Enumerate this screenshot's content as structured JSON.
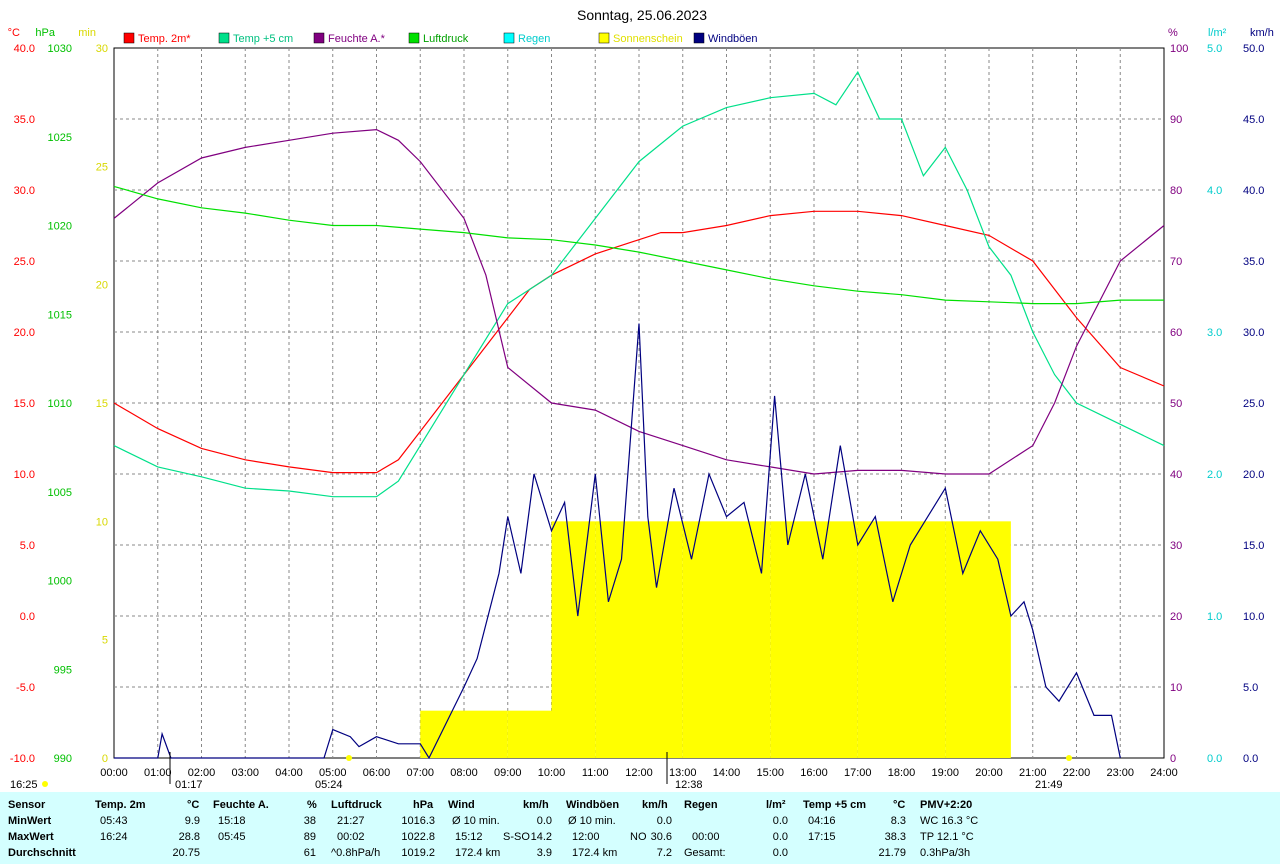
{
  "title": "Sonntag, 25.06.2023",
  "legend": [
    {
      "label": "Temp. 2m*",
      "color": "#ff0000"
    },
    {
      "label": "Temp +5 cm",
      "color": "#00e08a"
    },
    {
      "label": "Feuchte A.*",
      "color": "#800080"
    },
    {
      "label": "Luftdruck",
      "color": "#00e000"
    },
    {
      "label": "Regen",
      "color": "#00ffff"
    },
    {
      "label": "Sonnenschein",
      "color": "#ffff00"
    },
    {
      "label": "Windböen",
      "color": "#000080"
    }
  ],
  "axes": {
    "temp": {
      "unit": "°C",
      "ticks": [
        "40.0",
        "35.0",
        "30.0",
        "25.0",
        "20.0",
        "15.0",
        "10.0",
        "5.0",
        "0.0",
        "-5.0",
        "-10.0"
      ],
      "color": "#ff0000",
      "range": [
        -10,
        40
      ]
    },
    "pressure": {
      "unit": "hPa",
      "ticks": [
        "1030",
        "1025",
        "1020",
        "1015",
        "1010",
        "1005",
        "1000",
        "995",
        "990"
      ],
      "color": "#00c000",
      "range": [
        990,
        1030
      ]
    },
    "sun": {
      "unit": "min",
      "ticks": [
        "30",
        "25",
        "20",
        "15",
        "10",
        "5",
        "0"
      ],
      "color": "#ffff00",
      "range": [
        0,
        30
      ]
    },
    "humidity": {
      "unit": "%",
      "ticks": [
        "100",
        "90",
        "80",
        "70",
        "60",
        "50",
        "40",
        "30",
        "20",
        "10",
        "0"
      ],
      "color": "#800080",
      "range": [
        0,
        100
      ]
    },
    "rain": {
      "unit": "l/m²",
      "ticks": [
        "5.0",
        "4.0",
        "3.0",
        "2.0",
        "1.0",
        "0.0"
      ],
      "color": "#00ffff",
      "range": [
        0,
        5
      ]
    },
    "wind": {
      "unit": "km/h",
      "ticks": [
        "50.0",
        "45.0",
        "40.0",
        "35.0",
        "30.0",
        "25.0",
        "20.0",
        "15.0",
        "10.0",
        "5.0",
        "0.0"
      ],
      "color": "#000080",
      "range": [
        0,
        50
      ]
    },
    "x_ticks": [
      "00:00",
      "01:00",
      "02:00",
      "03:00",
      "04:00",
      "05:00",
      "06:00",
      "07:00",
      "08:00",
      "09:00",
      "10:00",
      "11:00",
      "12:00",
      "13:00",
      "14:00",
      "15:00",
      "16:00",
      "17:00",
      "18:00",
      "19:00",
      "20:00",
      "21:00",
      "22:00",
      "23:00",
      "24:00"
    ]
  },
  "markers": {
    "moon_set": "16:25",
    "moonrise": "01:17",
    "sunrise": "05:24",
    "noon": "12:38",
    "sunset": "21:49"
  },
  "chart_data": {
    "type": "line",
    "x_unit": "hour",
    "series": [
      {
        "name": "Temp. 2m*",
        "axis": "temp",
        "color": "#ff0000",
        "x": [
          0,
          1,
          2,
          3,
          4,
          5,
          6,
          6.5,
          7,
          8,
          9,
          9.5,
          10,
          11,
          12,
          12.5,
          13,
          14,
          15,
          16,
          17,
          18,
          19,
          20,
          21,
          22,
          23,
          24
        ],
        "y": [
          15.0,
          13.2,
          11.8,
          11.0,
          10.5,
          10.1,
          10.1,
          11.0,
          13.0,
          17.0,
          21.0,
          23.0,
          24.0,
          25.5,
          26.5,
          27.0,
          27.0,
          27.5,
          28.2,
          28.5,
          28.5,
          28.2,
          27.5,
          26.8,
          25.0,
          21.0,
          17.5,
          16.2
        ]
      },
      {
        "name": "Temp +5 cm",
        "axis": "temp",
        "color": "#00e08a",
        "x": [
          0,
          1,
          2,
          3,
          4,
          5,
          6,
          6.5,
          7,
          8,
          9,
          10,
          11,
          12,
          13,
          14,
          15,
          16,
          16.5,
          17,
          17.5,
          18,
          18.5,
          19,
          19.5,
          20,
          20.5,
          21,
          21.5,
          22,
          23,
          24
        ],
        "y": [
          12.0,
          10.5,
          9.8,
          9.0,
          8.8,
          8.4,
          8.4,
          9.5,
          12.0,
          17.0,
          22.0,
          24.0,
          28.0,
          32.0,
          34.5,
          35.8,
          36.5,
          36.8,
          36.0,
          38.3,
          35.0,
          35.0,
          31.0,
          33.0,
          30.0,
          26.0,
          24.0,
          20.0,
          17.0,
          15.0,
          13.5,
          12.0
        ]
      },
      {
        "name": "Feuchte A.*",
        "axis": "humidity",
        "color": "#800080",
        "x": [
          0,
          1,
          2,
          3,
          4,
          5,
          6,
          6.5,
          7,
          8,
          8.5,
          9,
          10,
          11,
          12,
          13,
          14,
          15,
          16,
          17,
          18,
          19,
          20,
          21,
          21.5,
          22,
          23,
          24
        ],
        "y": [
          76,
          81,
          84.5,
          86,
          87,
          88,
          88.5,
          87,
          84,
          76,
          68,
          55,
          50,
          49,
          46,
          44,
          42,
          41,
          40,
          40.5,
          40.5,
          40,
          40,
          44,
          50,
          58,
          70,
          75
        ]
      },
      {
        "name": "Luftdruck",
        "axis": "pressure",
        "color": "#00e000",
        "x": [
          0,
          1,
          2,
          3,
          4,
          5,
          6,
          7,
          8,
          9,
          10,
          11,
          12,
          13,
          14,
          15,
          16,
          17,
          18,
          19,
          20,
          21,
          22,
          23,
          24
        ],
        "y": [
          1022.2,
          1021.5,
          1021.0,
          1020.7,
          1020.3,
          1020.0,
          1020.0,
          1019.8,
          1019.6,
          1019.3,
          1019.2,
          1018.9,
          1018.5,
          1018.0,
          1017.5,
          1017.0,
          1016.6,
          1016.3,
          1016.1,
          1015.8,
          1015.7,
          1015.6,
          1015.6,
          1015.8,
          1015.8
        ]
      },
      {
        "name": "Windböen",
        "axis": "wind",
        "color": "#000080",
        "x": [
          0,
          1,
          1.1,
          1.3,
          4.8,
          5.0,
          5.4,
          5.6,
          6.0,
          6.5,
          7.0,
          7.2,
          8.0,
          8.3,
          8.8,
          9.0,
          9.3,
          9.6,
          10.0,
          10.3,
          10.6,
          11.0,
          11.3,
          11.6,
          12.0,
          12.2,
          12.4,
          12.8,
          13.2,
          13.6,
          14.0,
          14.4,
          14.8,
          15.1,
          15.4,
          15.8,
          16.2,
          16.6,
          17.0,
          17.4,
          17.8,
          18.2,
          18.6,
          19.0,
          19.4,
          19.8,
          20.2,
          20.5,
          20.8,
          21.0,
          21.3,
          21.6,
          22.0,
          22.4,
          22.8,
          23.0
        ],
        "y": [
          0,
          0,
          1.7,
          0,
          0,
          2.0,
          1.5,
          0.8,
          1.5,
          1.0,
          1.0,
          0,
          5.0,
          7.0,
          13.0,
          17.0,
          13.0,
          20.0,
          16.0,
          18.0,
          10.0,
          20.0,
          11.0,
          14.0,
          30.6,
          17.0,
          12.0,
          19.0,
          14.0,
          20.0,
          17.0,
          18.0,
          13.0,
          25.5,
          15.0,
          20.0,
          14.0,
          22.0,
          15.0,
          17.0,
          11.0,
          15.0,
          17.0,
          19.0,
          13.0,
          16.0,
          14.0,
          10.0,
          11.0,
          9.0,
          5.0,
          4.0,
          6.0,
          3.0,
          3.0,
          0
        ]
      }
    ],
    "bars": [
      {
        "name": "Sonnenschein",
        "axis": "sun",
        "color": "#ffff00",
        "x": [
          7.0,
          8.0,
          9.0,
          10.0,
          11.0,
          12.0,
          13.0,
          14.0,
          15.0,
          16.0,
          17.0,
          18.0,
          19.0,
          20.0,
          20.5
        ],
        "y": [
          2,
          2,
          2,
          10,
          10,
          10,
          10,
          10,
          10,
          10,
          10,
          10,
          10,
          10,
          10
        ]
      }
    ]
  },
  "table": {
    "headers": [
      {
        "name": "Sensor",
        "unit": ""
      },
      {
        "name": "Temp. 2m",
        "unit": "°C"
      },
      {
        "name": "Feuchte A.",
        "unit": "%"
      },
      {
        "name": "Luftdruck",
        "unit": "hPa"
      },
      {
        "name": "Wind",
        "unit": "km/h"
      },
      {
        "name": "Windböen",
        "unit": "km/h"
      },
      {
        "name": "Regen",
        "unit": "l/m²"
      },
      {
        "name": "Temp +5 cm",
        "unit": "°C"
      },
      {
        "name": "PMV+2:20",
        "unit": ""
      }
    ],
    "row_labels": [
      "MinWert",
      "MaxWert",
      "Durchschnitt"
    ],
    "temp2m": [
      [
        "05:43",
        "9.9"
      ],
      [
        "16:24",
        "28.8"
      ],
      [
        "",
        "20.75"
      ]
    ],
    "humidity": [
      [
        "15:18",
        "38"
      ],
      [
        "05:45",
        "89"
      ],
      [
        "",
        "61"
      ]
    ],
    "pressure": [
      [
        "21:27",
        "1016.3"
      ],
      [
        "00:02",
        "1022.8"
      ],
      [
        "^0.8hPa/h",
        "1019.2"
      ]
    ],
    "wind": [
      [
        "Ø 10 min.",
        "",
        "0.0"
      ],
      [
        "15:12",
        "S-SO",
        "14.2"
      ],
      [
        "172.4 km",
        "",
        "3.9"
      ]
    ],
    "gusts": [
      [
        "Ø 10 min.",
        "",
        "0.0"
      ],
      [
        "12:00",
        "NO",
        "30.6"
      ],
      [
        "172.4 km",
        "",
        "7.2"
      ]
    ],
    "rain": [
      [
        "",
        "0.0"
      ],
      [
        "00:00",
        "0.0"
      ],
      [
        "Gesamt:",
        "0.0"
      ]
    ],
    "temp5cm": [
      [
        "04:16",
        "8.3"
      ],
      [
        "17:15",
        "38.3"
      ],
      [
        "",
        "21.79"
      ]
    ],
    "pmv": [
      "WC 16.3 °C",
      "TP 12.1 °C",
      "0.3hPa/3h"
    ]
  }
}
